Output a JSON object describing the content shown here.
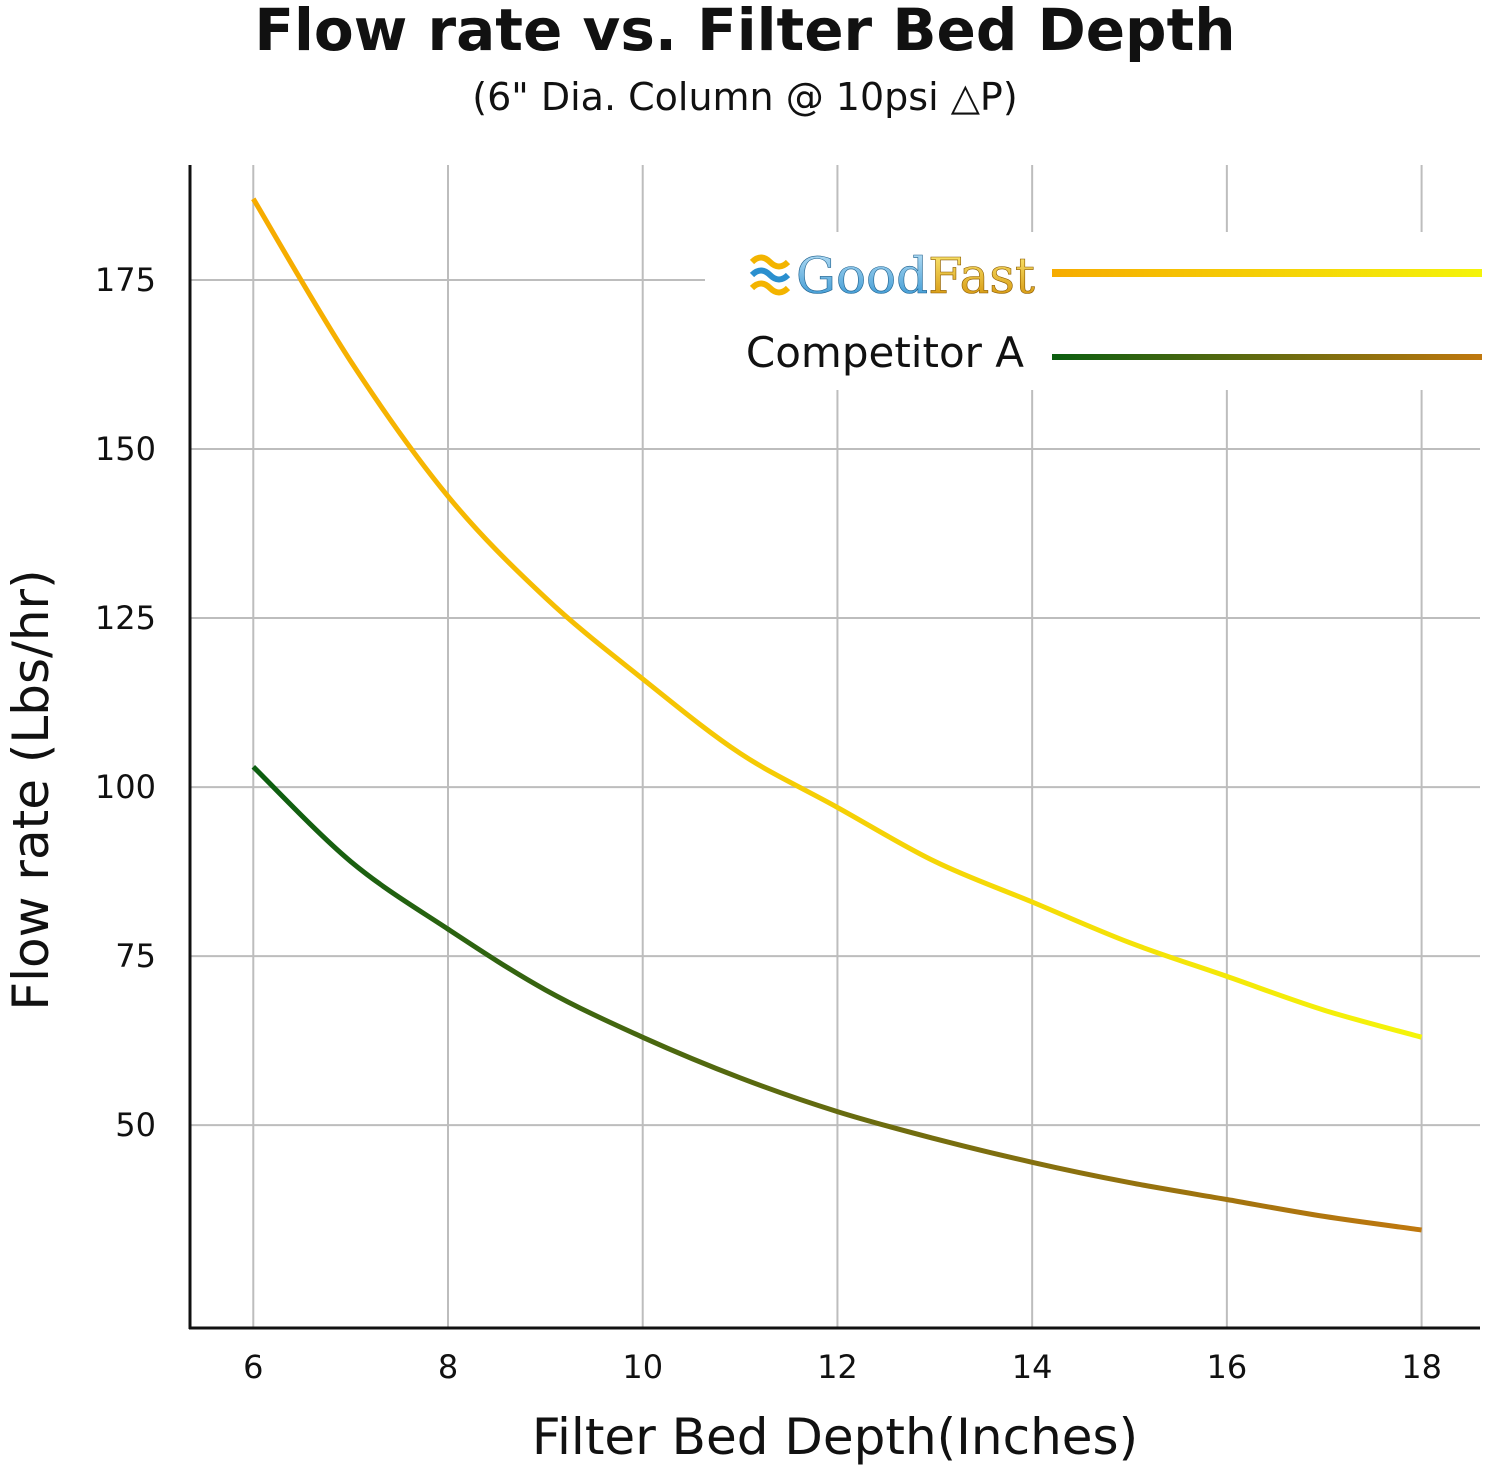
{
  "chart_data": {
    "type": "line",
    "title": "Flow rate vs. Filter Bed Depth",
    "subtitle": "(6\" Dia. Column @ 10psi △P)",
    "xlabel": "Filter Bed Depth(Inches)",
    "ylabel": "Flow rate (Lbs/hr)",
    "xlim": [
      5.35,
      18.6
    ],
    "ylim": [
      20,
      192
    ],
    "x_ticks": [
      "6",
      "8",
      "10",
      "12",
      "14",
      "16",
      "18"
    ],
    "y_ticks": [
      "50",
      "75",
      "100",
      "125",
      "150",
      "175"
    ],
    "grid": true,
    "legend_position": "top-right",
    "series": [
      {
        "name": "GoodFast",
        "logo_text_1": "Good",
        "logo_text_2": "Fast",
        "color_start": "#f6ab00",
        "color_end": "#f4f40a",
        "x": [
          6,
          7,
          8,
          9,
          10,
          11,
          12,
          13,
          14,
          15,
          16,
          17,
          18
        ],
        "y": [
          187,
          163,
          143,
          128,
          116,
          105,
          97,
          89,
          83,
          77,
          72,
          67,
          63
        ]
      },
      {
        "name": "Competitor A",
        "color_start": "#0b5e10",
        "color_end": "#c0780e",
        "x": [
          6,
          7,
          8,
          9,
          10,
          11,
          12,
          13,
          14,
          15,
          16,
          17,
          18
        ],
        "y": [
          103,
          89,
          79,
          70,
          63,
          57,
          52,
          48,
          44.5,
          41.5,
          39,
          36.5,
          34.5
        ]
      }
    ]
  }
}
